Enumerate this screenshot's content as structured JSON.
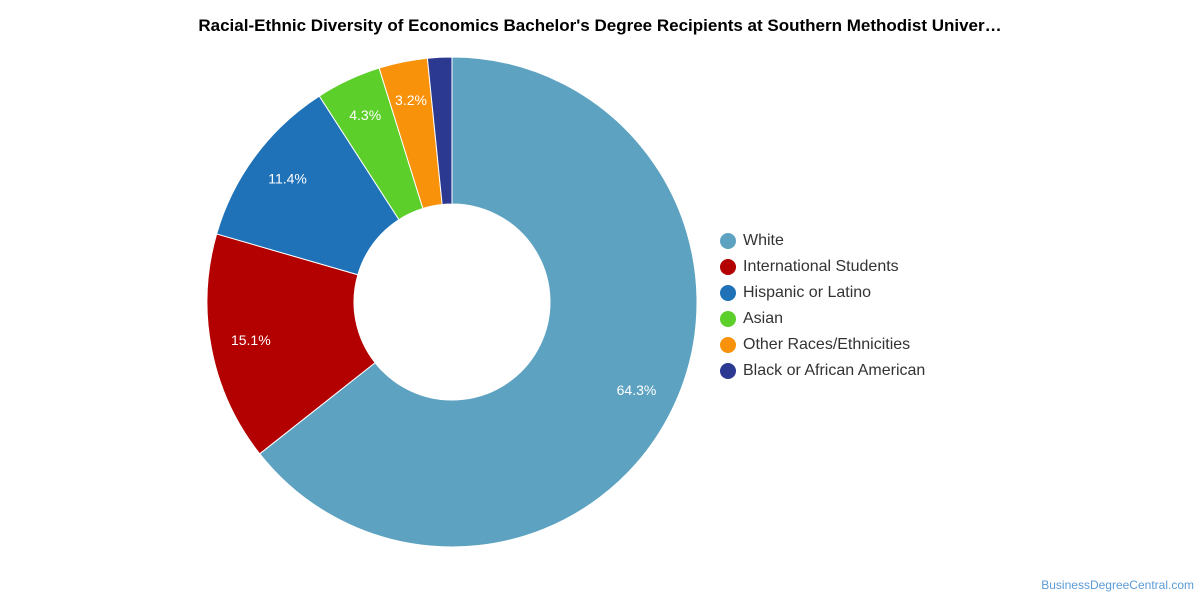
{
  "chart_data": {
    "type": "pie",
    "variant": "donut",
    "title": "Racial-Ethnic Diversity of Economics Bachelor's Degree Recipients at Southern Methodist Univer…",
    "categories": [
      "White",
      "International Students",
      "Hispanic or Latino",
      "Asian",
      "Other Races/Ethnicities",
      "Black or African American"
    ],
    "values": [
      64.3,
      15.1,
      11.4,
      4.3,
      3.2,
      1.6
    ],
    "value_labels": [
      "64.3%",
      "15.1%",
      "11.4%",
      "4.3%",
      "3.2%",
      ""
    ],
    "colors": [
      "#5da2c0",
      "#b30000",
      "#1f72b8",
      "#5ccf2a",
      "#f7920a",
      "#2b3990"
    ],
    "legend_position": "right"
  },
  "credit": "BusinessDegreeCentral.com"
}
